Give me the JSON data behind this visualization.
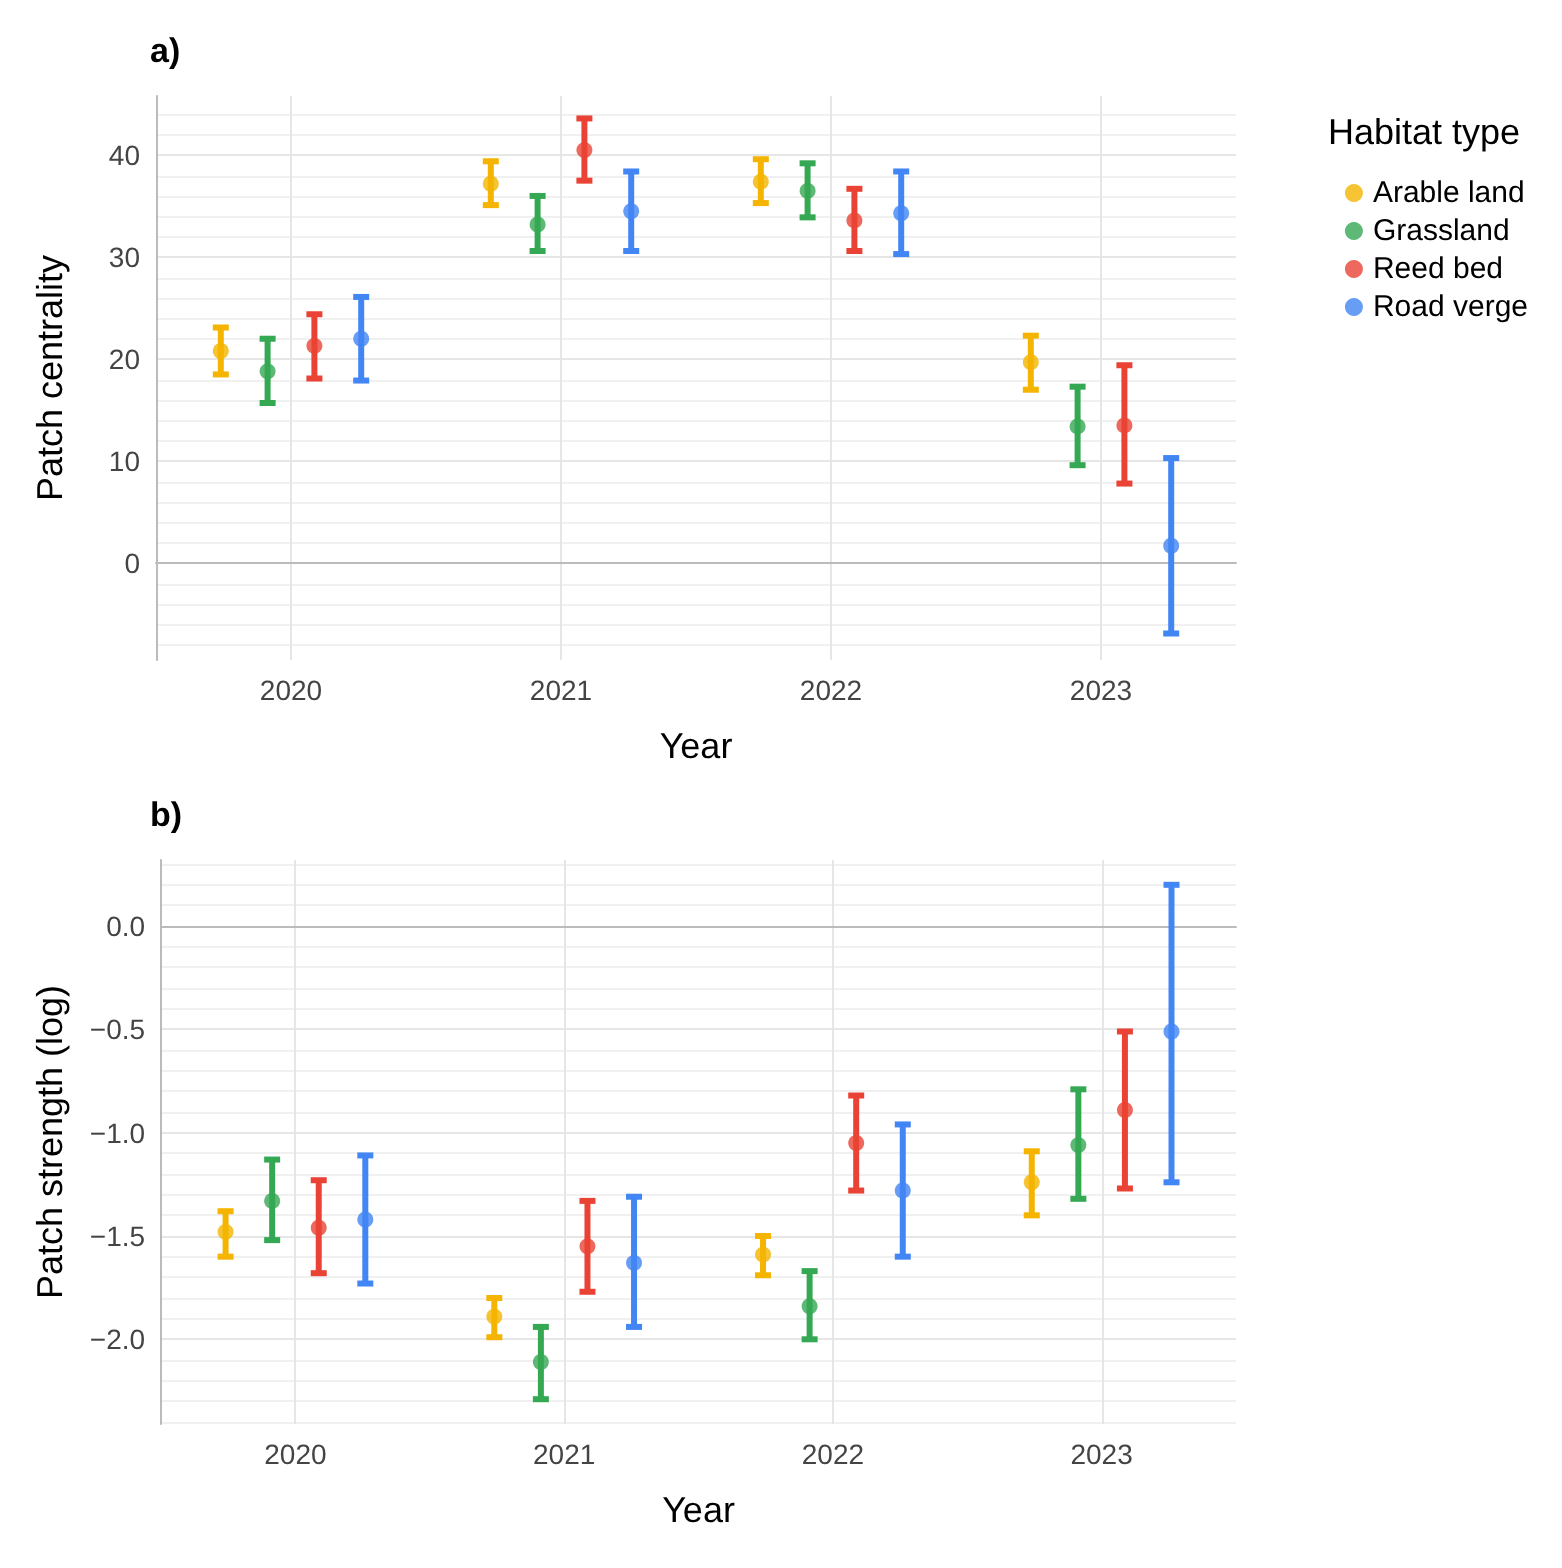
{
  "chart_data": [
    {
      "type": "scatter",
      "title": "a)",
      "xlabel": "Year",
      "ylabel": "Patch centrality",
      "legend_title": "Habitat type",
      "categories": [
        "2020",
        "2021",
        "2022",
        "2023"
      ],
      "ylim": [
        -9.5,
        45.8
      ],
      "yticks": [
        0,
        10,
        20,
        30,
        40
      ],
      "grid": true,
      "legend": "right",
      "marker": "circle",
      "series": [
        {
          "name": "Arable land",
          "color": "#f4b400",
          "values": [
            20.8,
            37.2,
            37.4,
            19.7
          ],
          "errors": [
            [
              18.5,
              23.1
            ],
            [
              35.1,
              39.4
            ],
            [
              35.3,
              39.6
            ],
            [
              17,
              22.3
            ]
          ]
        },
        {
          "name": "Grassland",
          "color": "#34a853",
          "values": [
            18.8,
            33.2,
            36.5,
            13.4
          ],
          "errors": [
            [
              15.7,
              22
            ],
            [
              30.6,
              36
            ],
            [
              33.9,
              39.2
            ],
            [
              9.6,
              17.3
            ]
          ]
        },
        {
          "name": "Reed bed",
          "color": "#ea4335",
          "values": [
            21.3,
            40.5,
            33.6,
            13.5
          ],
          "errors": [
            [
              18.1,
              24.4
            ],
            [
              37.5,
              43.6
            ],
            [
              30.6,
              36.7
            ],
            [
              7.8,
              19.4
            ]
          ]
        },
        {
          "name": "Road verge",
          "color": "#4285f4",
          "values": [
            22,
            34.5,
            34.3,
            1.7
          ],
          "errors": [
            [
              17.9,
              26.1
            ],
            [
              30.6,
              38.4
            ],
            [
              30.3,
              38.4
            ],
            [
              -6.9,
              10.3
            ]
          ]
        }
      ]
    },
    {
      "type": "scatter",
      "title": "b)",
      "xlabel": "Year",
      "ylabel": "Patch strength (log)",
      "categories": [
        "2020",
        "2021",
        "2022",
        "2023"
      ],
      "ylim": [
        -2.41,
        0.32
      ],
      "yticks": [
        {
          "value": -2,
          "label": "−2.0"
        },
        {
          "value": -1.5,
          "label": "−1.5"
        },
        {
          "value": -1,
          "label": "−1.0"
        },
        {
          "value": -0.5,
          "label": "−0.5"
        },
        {
          "value": 0,
          "label": "0.0"
        }
      ],
      "grid": true,
      "marker": "circle",
      "series": [
        {
          "color": "#f4b400",
          "values": [
            -1.48,
            -1.89,
            -1.59,
            -1.24
          ],
          "errors": [
            [
              -1.6,
              -1.38
            ],
            [
              -1.99,
              -1.8
            ],
            [
              -1.69,
              -1.5
            ],
            [
              -1.4,
              -1.09
            ]
          ]
        },
        {
          "color": "#34a853",
          "values": [
            -1.33,
            -2.11,
            -1.84,
            -1.06
          ],
          "errors": [
            [
              -1.52,
              -1.13
            ],
            [
              -2.29,
              -1.94
            ],
            [
              -2.0,
              -1.67
            ],
            [
              -1.32,
              -0.79
            ]
          ]
        },
        {
          "color": "#ea4335",
          "values": [
            -1.46,
            -1.55,
            -1.05,
            -0.89
          ],
          "errors": [
            [
              -1.68,
              -1.23
            ],
            [
              -1.77,
              -1.33
            ],
            [
              -1.28,
              -0.82
            ],
            [
              -1.27,
              -0.51
            ]
          ]
        },
        {
          "color": "#4285f4",
          "values": [
            -1.42,
            -1.63,
            -1.28,
            -0.51
          ],
          "errors": [
            [
              -1.73,
              -1.11
            ],
            [
              -1.94,
              -1.31
            ],
            [
              -1.6,
              -0.96
            ],
            [
              -1.24,
              0.2
            ]
          ]
        }
      ]
    }
  ]
}
